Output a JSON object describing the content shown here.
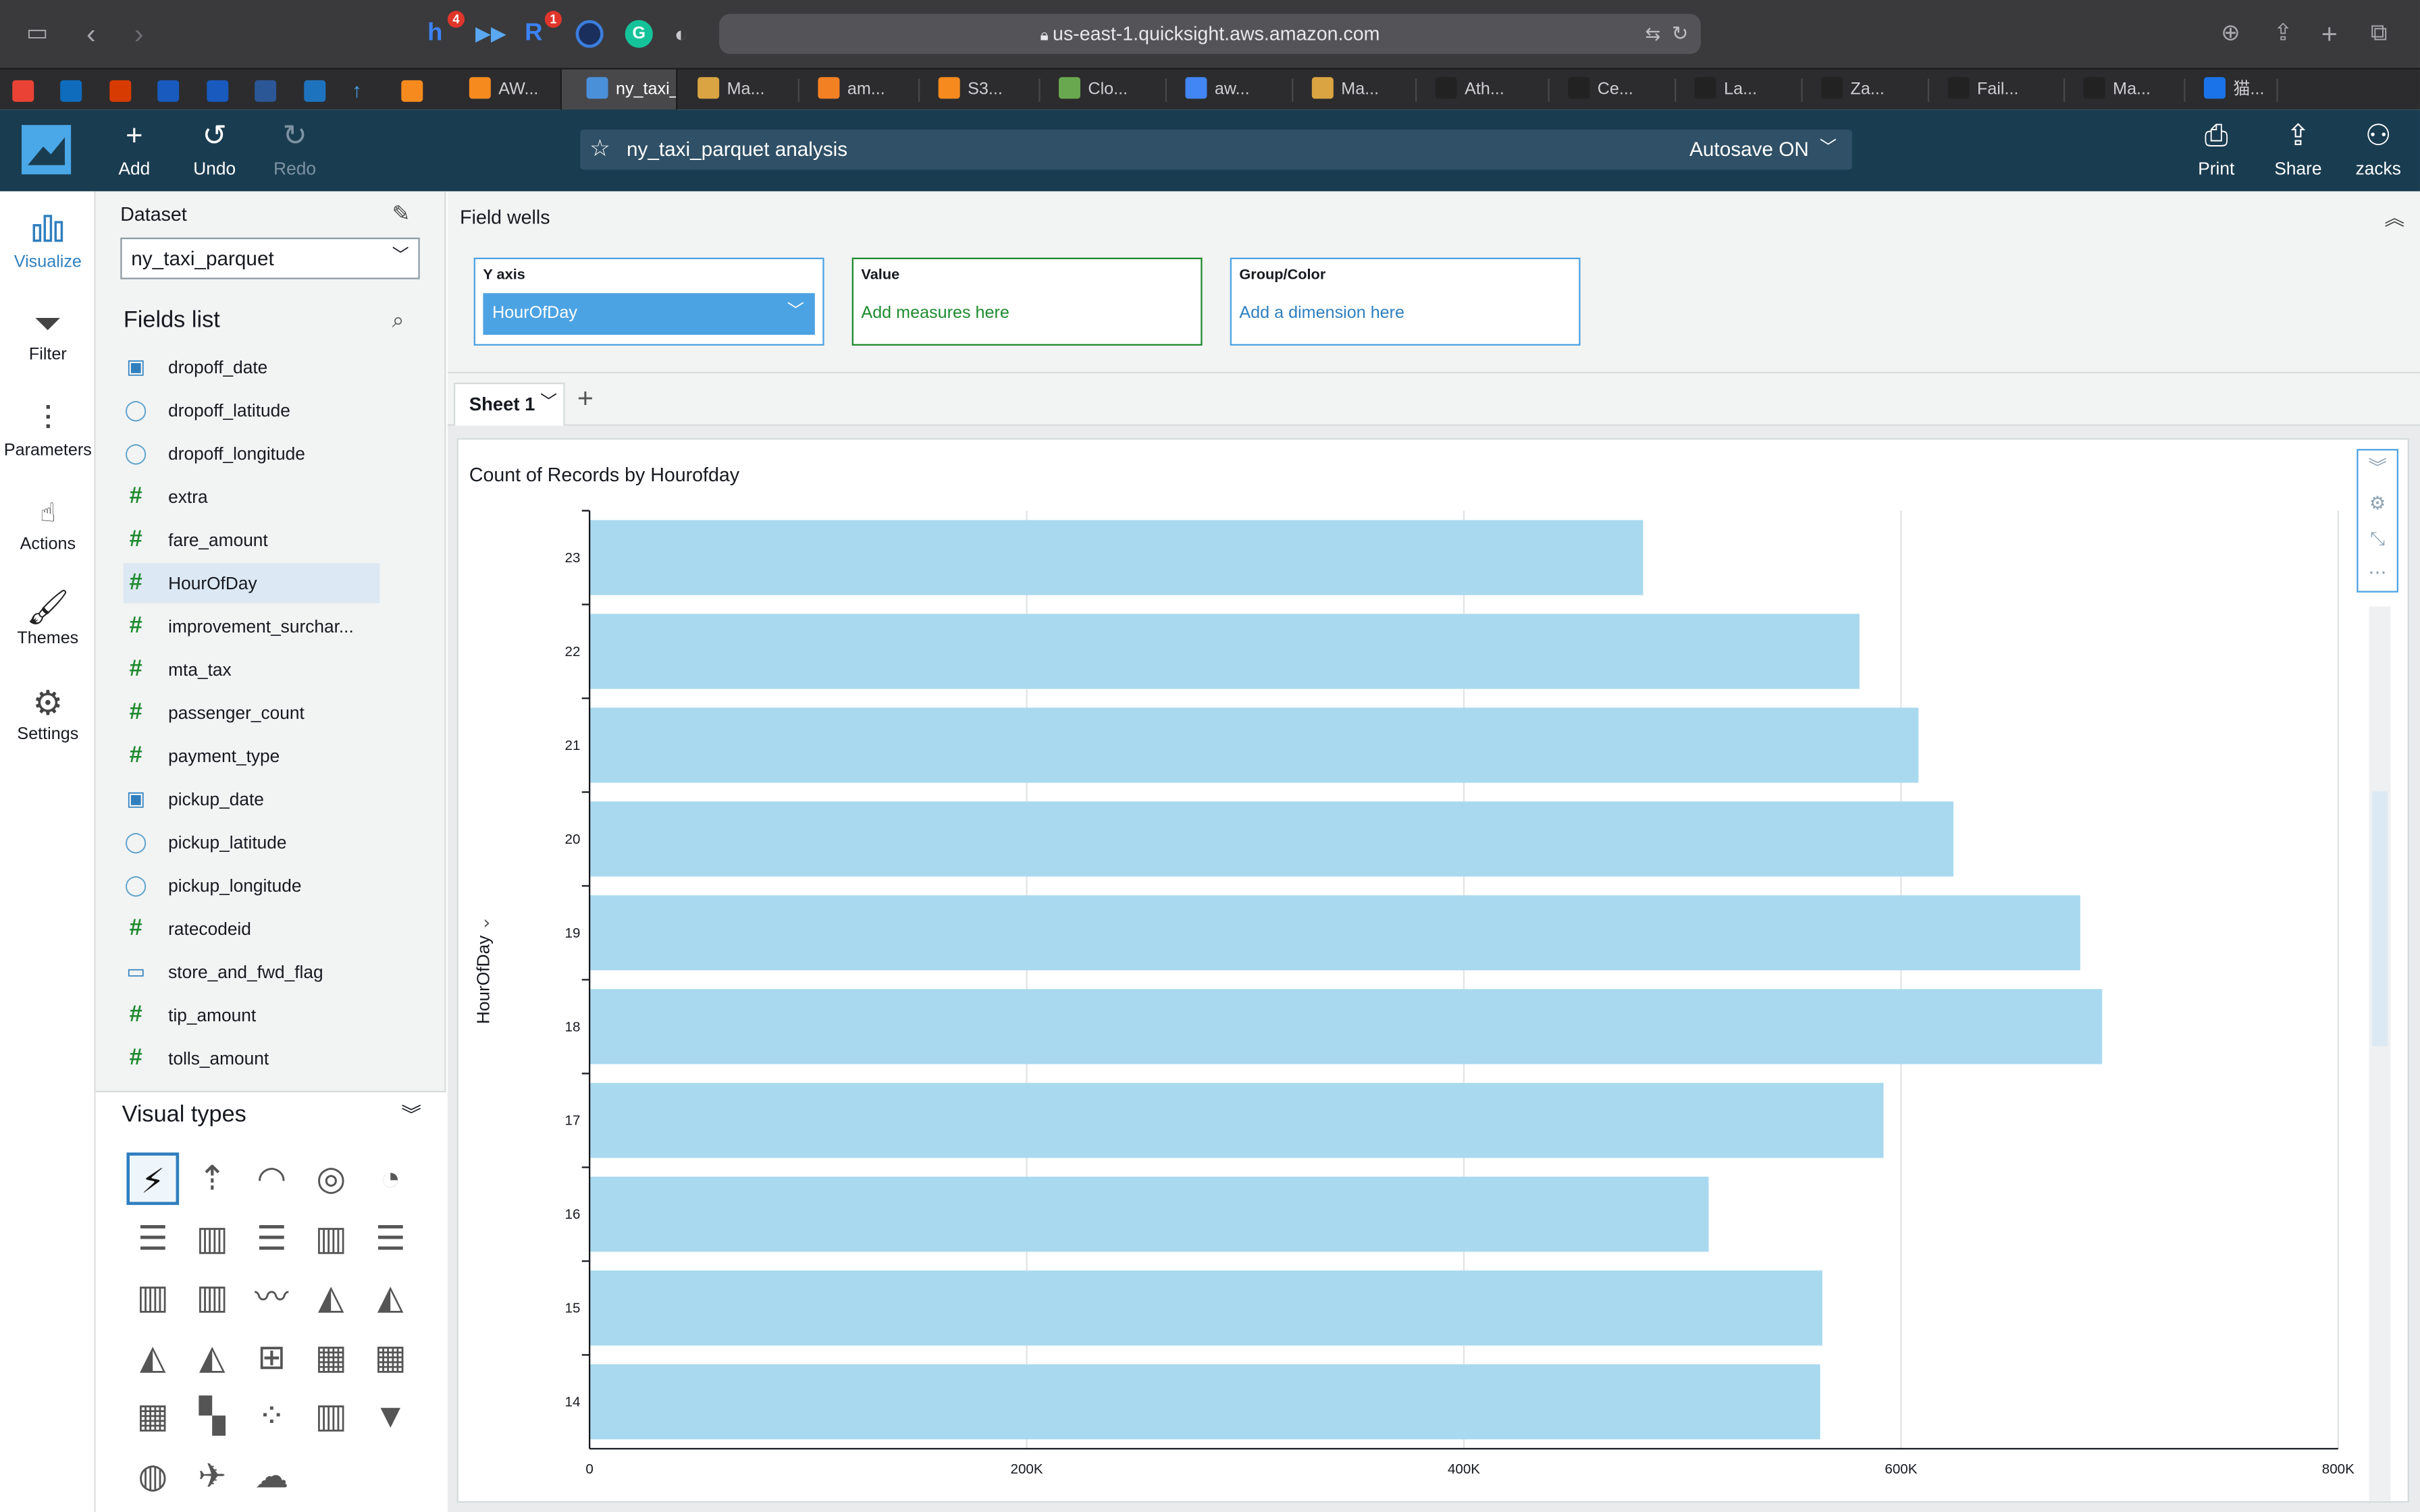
{
  "browser": {
    "url": "us-east-1.quicksight.aws.amazon.com",
    "badges": {
      "hypothesis": "4",
      "readwise": "1"
    }
  },
  "tabs": [
    {
      "label": "AW...",
      "color": "#f68a1e"
    },
    {
      "label": "ny_taxi_...",
      "color": "#4a90d9",
      "active": true
    },
    {
      "label": "Ma...",
      "color": "#d9a441"
    },
    {
      "label": "am...",
      "color": "#f48024"
    },
    {
      "label": "S3...",
      "color": "#f68a1e"
    },
    {
      "label": "Clo...",
      "color": "#6aa84f"
    },
    {
      "label": "aw...",
      "color": "#4285f4"
    },
    {
      "label": "Ma...",
      "color": "#d9a441"
    },
    {
      "label": "Ath...",
      "color": "#222222"
    },
    {
      "label": "Ce...",
      "color": "#222222"
    },
    {
      "label": "La...",
      "color": "#222222"
    },
    {
      "label": "Za...",
      "color": "#222222"
    },
    {
      "label": "Fail...",
      "color": "#222222"
    },
    {
      "label": "Ma...",
      "color": "#222222"
    },
    {
      "label": "猫...",
      "color": "#1a73e8"
    }
  ],
  "header": {
    "add": "Add",
    "undo": "Undo",
    "redo": "Redo",
    "analysis_name": "ny_taxi_parquet analysis",
    "autosave": "Autosave ON",
    "print": "Print",
    "share": "Share",
    "user": "zacks"
  },
  "rail": {
    "visualize": "Visualize",
    "filter": "Filter",
    "parameters": "Parameters",
    "actions": "Actions",
    "themes": "Themes",
    "settings": "Settings"
  },
  "fields_panel": {
    "dataset_label": "Dataset",
    "dataset_value": "ny_taxi_parquet",
    "fields_title": "Fields list",
    "fields": [
      {
        "name": "dropoff_date",
        "type": "date"
      },
      {
        "name": "dropoff_latitude",
        "type": "geo"
      },
      {
        "name": "dropoff_longitude",
        "type": "geo"
      },
      {
        "name": "extra",
        "type": "num"
      },
      {
        "name": "fare_amount",
        "type": "num"
      },
      {
        "name": "HourOfDay",
        "type": "num",
        "selected": true
      },
      {
        "name": "improvement_surchar...",
        "type": "num"
      },
      {
        "name": "mta_tax",
        "type": "num"
      },
      {
        "name": "passenger_count",
        "type": "num"
      },
      {
        "name": "payment_type",
        "type": "num"
      },
      {
        "name": "pickup_date",
        "type": "date"
      },
      {
        "name": "pickup_latitude",
        "type": "geo"
      },
      {
        "name": "pickup_longitude",
        "type": "geo"
      },
      {
        "name": "ratecodeid",
        "type": "num"
      },
      {
        "name": "store_and_fwd_flag",
        "type": "str"
      },
      {
        "name": "tip_amount",
        "type": "num"
      },
      {
        "name": "tolls_amount",
        "type": "num"
      }
    ],
    "visual_types_title": "Visual types",
    "visual_types": [
      "autograph-icon",
      "kpi-icon",
      "gauge-icon",
      "donut-icon",
      "pie-icon",
      "horizontal-bar-icon",
      "vertical-bar-icon",
      "horizontal-stacked-bar-icon",
      "vertical-stacked-bar-icon",
      "horizontal-100-bar-icon",
      "vertical-100-bar-icon",
      "combo-icon",
      "line-icon",
      "area-icon",
      "bar-line-icon",
      "stacked-area-icon",
      "area-line-icon",
      "box-plot-icon",
      "table-icon",
      "pivot-icon",
      "heatmap-icon",
      "treemap-icon",
      "scatter-icon",
      "histogram-icon",
      "funnel-icon",
      "globe-icon",
      "map-icon",
      "wordcloud-icon"
    ]
  },
  "field_wells": {
    "title": "Field wells",
    "y_axis_label": "Y axis",
    "y_axis_field": "HourOfDay",
    "value_label": "Value",
    "value_placeholder": "Add measures here",
    "group_label": "Group/Color",
    "group_placeholder": "Add a dimension here"
  },
  "sheets": {
    "active": "Sheet 1"
  },
  "colors": {
    "bar": "#a9d9ef",
    "accent": "#4ca3e3",
    "header_bg": "#1a3c50",
    "value_well": "#1e8a2e"
  },
  "chart_data": {
    "type": "bar",
    "orientation": "horizontal",
    "title": "Count of Records by Hourofday",
    "ylabel": "HourOfDay",
    "xlabel": "",
    "categories": [
      "23",
      "22",
      "21",
      "20",
      "19",
      "18",
      "17",
      "16",
      "15",
      "14"
    ],
    "values": [
      482000,
      581000,
      608000,
      624000,
      682000,
      692000,
      592000,
      512000,
      564000,
      563000
    ],
    "xlim": [
      0,
      800000
    ],
    "x_ticks": [
      {
        "value": 0,
        "label": "0"
      },
      {
        "value": 200000,
        "label": "200K"
      },
      {
        "value": 400000,
        "label": "400K"
      },
      {
        "value": 600000,
        "label": "600K"
      },
      {
        "value": 800000,
        "label": "800K"
      }
    ],
    "grid": true,
    "legend": "none"
  }
}
